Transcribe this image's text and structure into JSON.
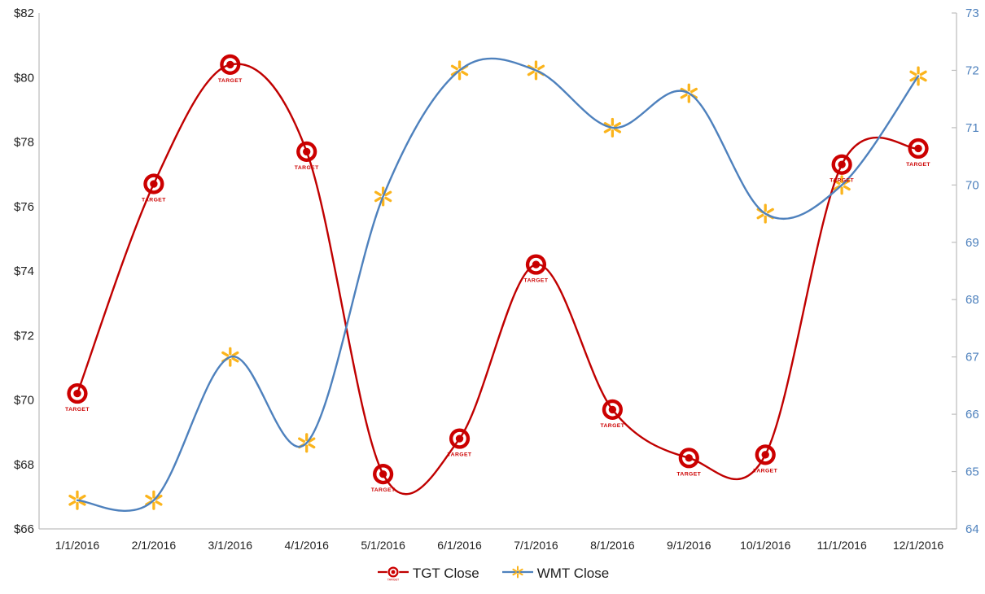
{
  "chart_data": {
    "type": "line",
    "title": "",
    "x_categories": [
      "1/1/2016",
      "2/1/2016",
      "3/1/2016",
      "4/1/2016",
      "5/1/2016",
      "6/1/2016",
      "7/1/2016",
      "8/1/2016",
      "9/1/2016",
      "10/1/2016",
      "11/1/2016",
      "12/1/2016"
    ],
    "series": [
      {
        "name": "TGT Close",
        "axis": "left",
        "line_color": "#C00000",
        "marker": "target-bullseye-icon",
        "marker_color": "#CC0000",
        "point_label": "TARGET",
        "point_label_color": "#CC0000",
        "values": [
          70.2,
          76.7,
          80.4,
          77.7,
          67.7,
          68.8,
          74.2,
          69.7,
          68.2,
          68.3,
          77.3,
          77.8
        ]
      },
      {
        "name": "WMT Close",
        "axis": "right",
        "line_color": "#4E81BD",
        "marker": "walmart-spark-icon",
        "marker_color": "#FBB41C",
        "point_label": "",
        "values": [
          64.5,
          64.5,
          67.0,
          65.5,
          69.8,
          72.0,
          72.0,
          71.0,
          71.6,
          69.5,
          70.0,
          71.9
        ]
      }
    ],
    "left_axis": {
      "min": 66,
      "max": 82,
      "step": 2,
      "tick_labels": [
        "$82",
        "$80",
        "$78",
        "$76",
        "$74",
        "$72",
        "$70",
        "$68",
        "$66"
      ],
      "label_color": "#1f1f1f"
    },
    "right_axis": {
      "min": 64,
      "max": 73,
      "step": 1,
      "tick_labels": [
        "73",
        "72",
        "71",
        "70",
        "69",
        "68",
        "67",
        "66",
        "65",
        "64"
      ],
      "label_color": "#4E81BD"
    },
    "x_axis": {
      "label_color": "#1f1f1f"
    },
    "axis_line_color": "#BFBFBF",
    "grid": false,
    "smooth_lines": true,
    "legend_position": "bottom"
  }
}
